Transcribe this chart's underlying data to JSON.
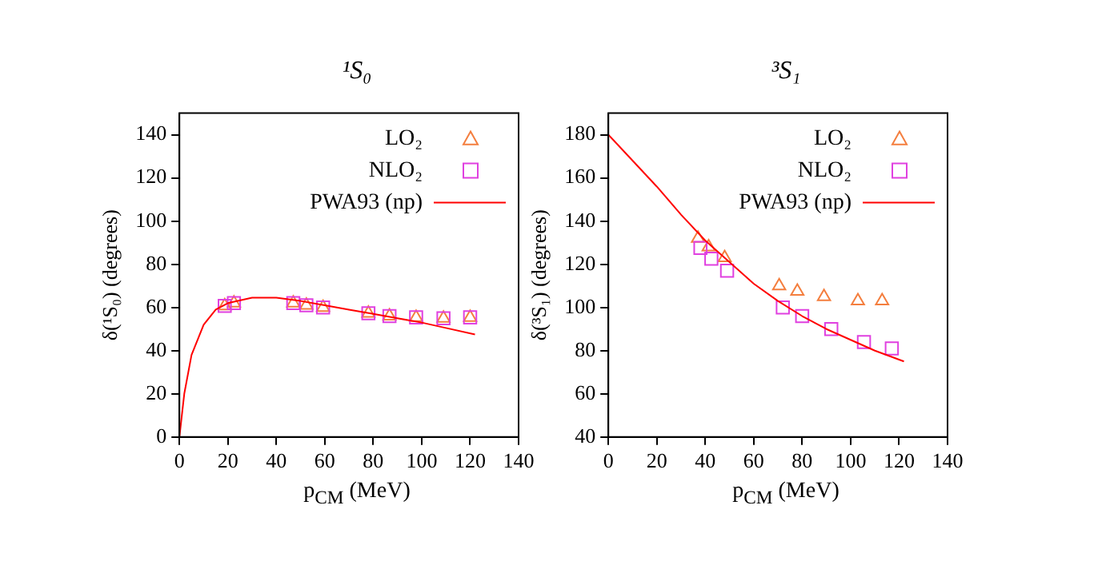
{
  "chart_data": [
    {
      "type": "scatter",
      "title": "¹S₀",
      "xlabel": "p$_{CM}$ (MeV)",
      "ylabel": "δ(¹S₀) (degrees)",
      "xlim": [
        0,
        140
      ],
      "xticks": [
        0,
        20,
        40,
        60,
        80,
        100,
        120,
        140
      ],
      "ylim": [
        0,
        150
      ],
      "yticks": [
        0,
        20,
        40,
        60,
        80,
        100,
        120,
        140
      ],
      "grid": false,
      "legend": "top right",
      "series": [
        {
          "name": "LO₂",
          "color": "#f47e3e",
          "marker": "triangle",
          "x": [
            18.7,
            22.5,
            47,
            52.4,
            59.3,
            78,
            86.7,
            97.7,
            109,
            120
          ],
          "values": [
            60.7,
            62,
            62,
            61,
            60,
            57.3,
            56,
            55.4,
            55,
            55.4
          ]
        },
        {
          "name": "NLO₂",
          "color": "#e040e0",
          "marker": "square",
          "x": [
            18.7,
            22.5,
            47,
            52.4,
            59.3,
            78,
            86.7,
            97.7,
            109,
            120
          ],
          "values": [
            60.7,
            62,
            62,
            61,
            60,
            57.3,
            56,
            55.4,
            55,
            55.4
          ]
        },
        {
          "name": "PWA93 (np)",
          "type": "line",
          "color": "#ff0000",
          "marker": "none",
          "x": [
            0,
            2,
            5,
            10,
            15,
            20,
            30,
            40,
            50,
            60,
            70,
            80,
            90,
            100,
            110,
            122
          ],
          "values": [
            0,
            20,
            38,
            52,
            59,
            62,
            64.5,
            64.5,
            63,
            61,
            59,
            57,
            55,
            53,
            50.5,
            47.5
          ]
        }
      ]
    },
    {
      "type": "scatter",
      "title": "³S₁",
      "xlabel": "p$_{CM}$ (MeV)",
      "ylabel": "δ(³S₁) (degrees)",
      "xlim": [
        0,
        140
      ],
      "xticks": [
        0,
        20,
        40,
        60,
        80,
        100,
        120,
        140
      ],
      "ylim": [
        40,
        190
      ],
      "yticks": [
        40,
        60,
        80,
        100,
        120,
        140,
        160,
        180
      ],
      "grid": false,
      "legend": "top right",
      "series": [
        {
          "name": "LO₂",
          "color": "#f47e3e",
          "marker": "triangle",
          "x": [
            37,
            41.4,
            48,
            70.5,
            78,
            89,
            103,
            113
          ],
          "values": [
            132,
            128,
            123,
            110,
            107.5,
            105,
            103,
            103
          ]
        },
        {
          "name": "NLO₂",
          "color": "#e040e0",
          "marker": "square",
          "x": [
            38,
            42.5,
            49,
            72,
            80,
            92,
            105.5,
            117
          ],
          "values": [
            127.6,
            122.6,
            117,
            100,
            96,
            90,
            84,
            81
          ]
        },
        {
          "name": "PWA93 (np)",
          "type": "line",
          "color": "#ff0000",
          "marker": "none",
          "x": [
            0,
            10,
            20,
            30,
            40,
            50,
            60,
            70,
            80,
            90,
            100,
            110,
            122
          ],
          "values": [
            180,
            168,
            156,
            143,
            131,
            121,
            111,
            103,
            96,
            90,
            85,
            80,
            75
          ]
        }
      ]
    }
  ]
}
